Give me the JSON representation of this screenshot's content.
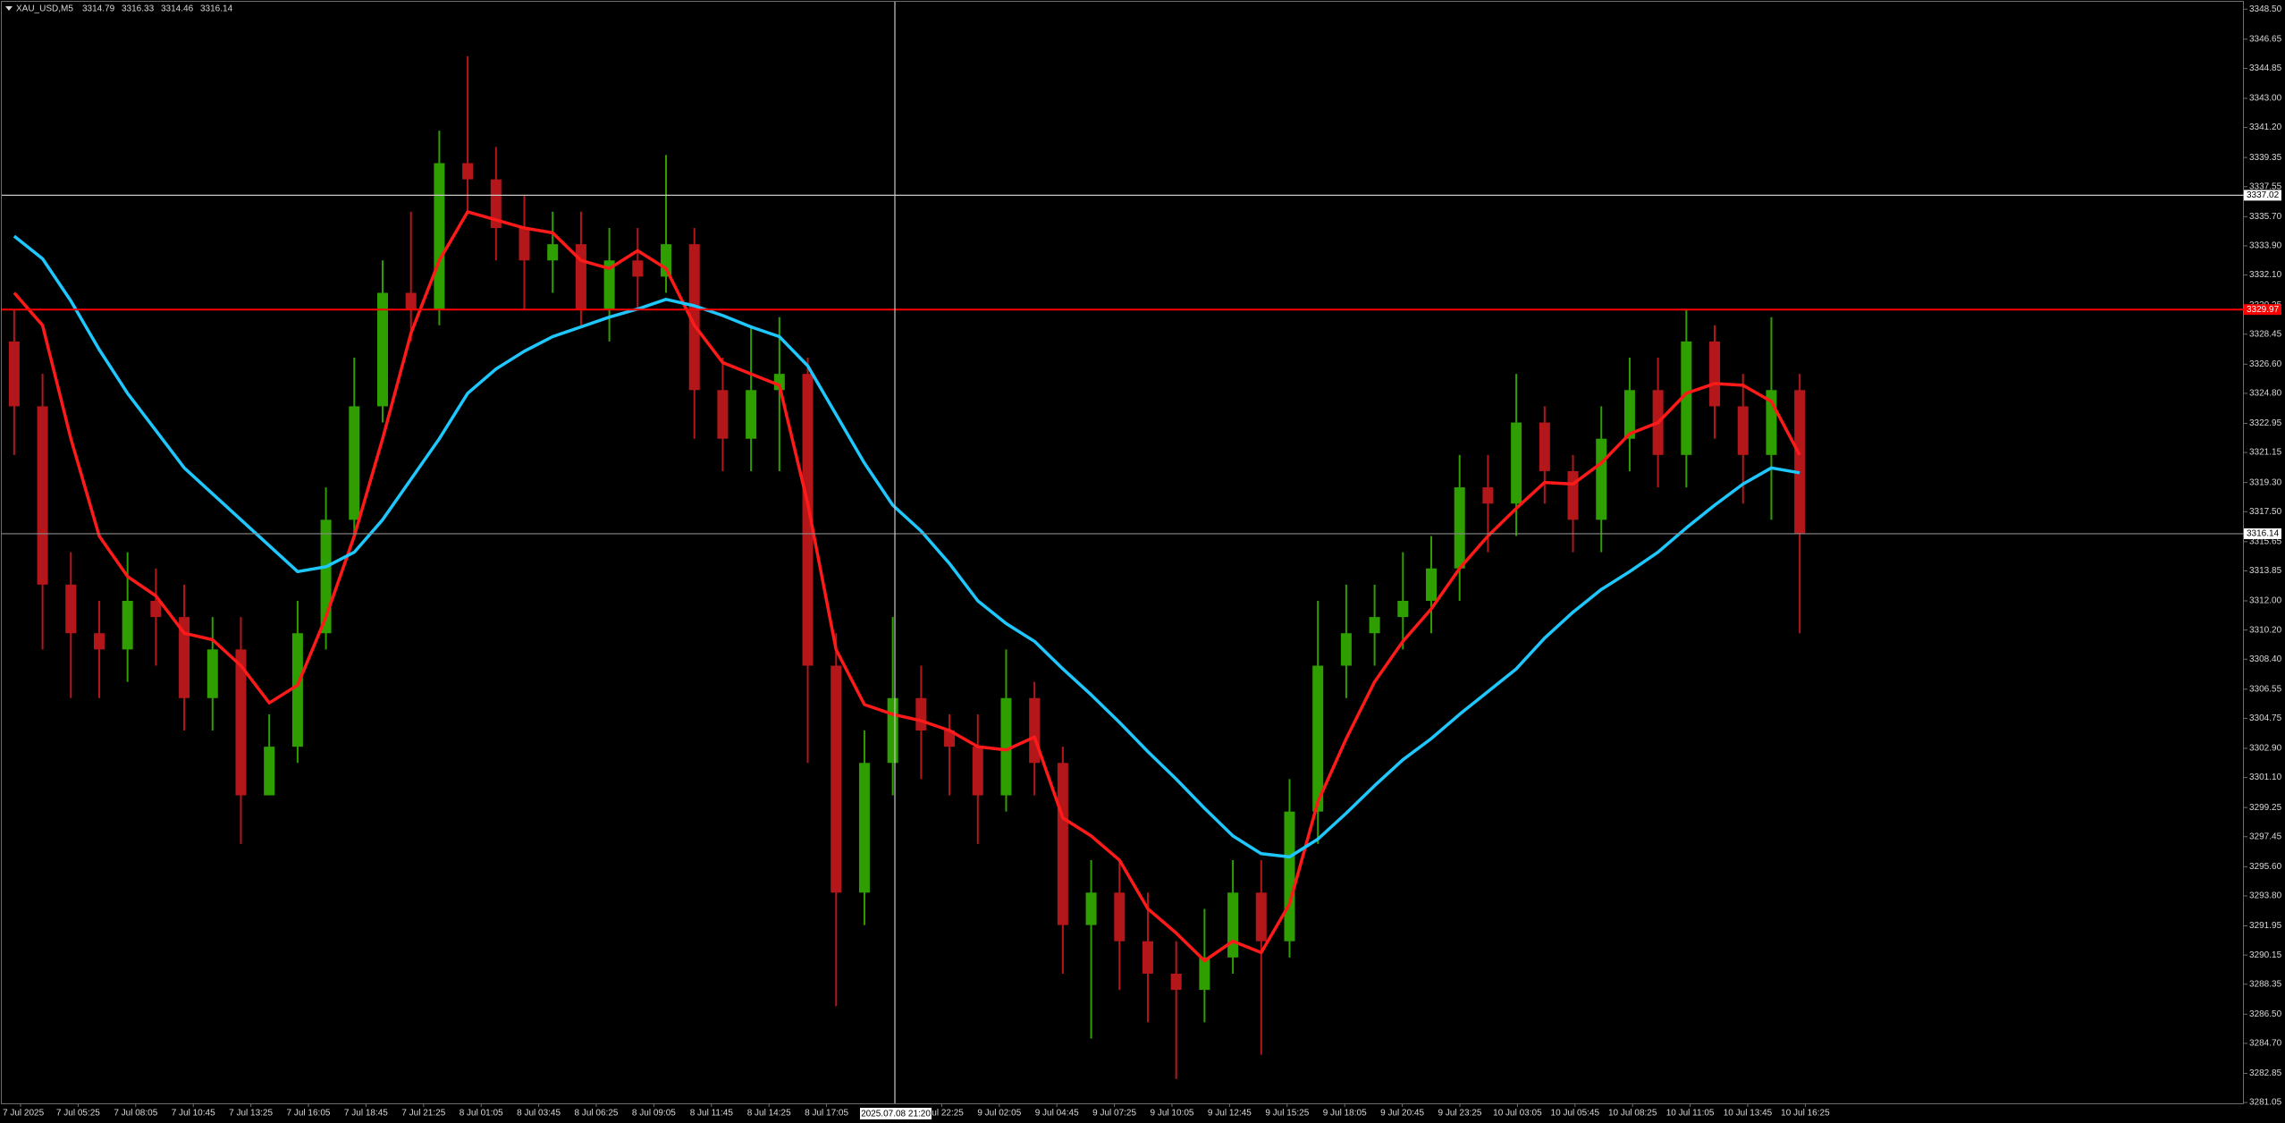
{
  "chart_data": {
    "type": "candlestick",
    "symbol": "XAU_USD,M5",
    "ohlc": [
      3314.79,
      3316.33,
      3314.46,
      3316.14
    ],
    "bull_color": "#2f9e00",
    "bear_color": "#b3171a",
    "open": [
      3328,
      3324,
      3313,
      3310,
      3309,
      3312,
      3311,
      3306,
      3309,
      3300,
      3303,
      3310,
      3317,
      3324,
      3331,
      3330,
      3339,
      3338,
      3335,
      3333,
      3334,
      3330,
      3333,
      3332,
      3334,
      3325,
      3322,
      3325,
      3326,
      3308,
      3294,
      3302,
      3306,
      3304,
      3303,
      3300,
      3306,
      3302,
      3292,
      3294,
      3291,
      3289,
      3288,
      3290,
      3294,
      3291,
      3299,
      3308,
      3310,
      3311,
      3312,
      3314,
      3319,
      3318,
      3323,
      3320,
      3317,
      3322,
      3325,
      3321,
      3328,
      3324,
      3321,
      3325
    ],
    "high": [
      3330,
      3326,
      3315,
      3312,
      3315,
      3314,
      3313,
      3311,
      3311,
      3305,
      3312,
      3319,
      3327,
      3333,
      3336,
      3341,
      3345.6,
      3340,
      3337,
      3336,
      3336,
      3335,
      3335,
      3339.5,
      3335,
      3327,
      3329,
      3329.5,
      3327,
      3310,
      3304,
      3311,
      3308,
      3305,
      3305,
      3309,
      3307,
      3303,
      3296,
      3296,
      3294,
      3291,
      3293,
      3296,
      3296,
      3301,
      3312,
      3313,
      3313,
      3315,
      3316,
      3321,
      3321,
      3326,
      3324,
      3321,
      3324,
      3327,
      3327,
      3330,
      3329,
      3326,
      3329.5,
      3326
    ],
    "low": [
      3321,
      3309,
      3306,
      3306,
      3307,
      3308,
      3304,
      3304,
      3297,
      3300,
      3302,
      3309,
      3316,
      3323,
      3328,
      3329,
      3336,
      3333,
      3330,
      3331,
      3329,
      3328,
      3330,
      3331,
      3322,
      3320,
      3320,
      3320,
      3302,
      3287,
      3292,
      3300,
      3301,
      3300,
      3297,
      3299,
      3300,
      3289,
      3285,
      3288,
      3286,
      3282.5,
      3286,
      3289,
      3284,
      3290,
      3297,
      3306,
      3308,
      3309,
      3310,
      3312,
      3315,
      3316,
      3318,
      3315,
      3315,
      3320,
      3319,
      3319,
      3322,
      3318,
      3317,
      3310
    ],
    "close": [
      3324,
      3313,
      3310,
      3309,
      3312,
      3311,
      3306,
      3309,
      3300,
      3303,
      3310,
      3317,
      3324,
      3331,
      3330,
      3339,
      3338,
      3335,
      3333,
      3334,
      3330,
      3333,
      3332,
      3334,
      3325,
      3322,
      3325,
      3326,
      3308,
      3294,
      3302,
      3306,
      3304,
      3303,
      3300,
      3306,
      3302,
      3292,
      3294,
      3291,
      3289,
      3288,
      3290,
      3294,
      3291,
      3299,
      3308,
      3310,
      3311,
      3312,
      3314,
      3319,
      3318,
      3323,
      3320,
      3317,
      3322,
      3325,
      3321,
      3328,
      3324,
      3321,
      3325,
      3316.14
    ],
    "series": [
      {
        "color": "#ff1a1a",
        "values": [
          3331,
          3329,
          3322,
          3316,
          3313.5,
          3312.3,
          3310,
          3309.6,
          3308,
          3305.7,
          3306.8,
          3311,
          3316,
          3322,
          3328.5,
          3333,
          3336,
          3335.5,
          3335,
          3334.7,
          3333,
          3332.5,
          3333.6,
          3332.5,
          3329,
          3326.7,
          3326,
          3325.3,
          3318,
          3309,
          3305.6,
          3305,
          3304.6,
          3304,
          3303,
          3302.8,
          3303.6,
          3298.6,
          3297.5,
          3296,
          3293,
          3291.5,
          3289.8,
          3291,
          3290.3,
          3293.3,
          3299.6,
          3303.5,
          3307,
          3309.5,
          3311.5,
          3314,
          3316,
          3317.7,
          3319.3,
          3319.2,
          3320.5,
          3322.3,
          3323,
          3324.8,
          3325.4,
          3325.3,
          3324.3,
          3321
        ]
      },
      {
        "color": "#1ec8ff",
        "values": [
          3334.5,
          3333.1,
          3330.5,
          3327.5,
          3324.8,
          3322.5,
          3320.2,
          3318.6,
          3317,
          3315.4,
          3313.8,
          3314.1,
          3315,
          3317,
          3319.5,
          3322,
          3324.8,
          3326.3,
          3327.4,
          3328.3,
          3328.9,
          3329.5,
          3330,
          3330.6,
          3330.2,
          3329.6,
          3328.9,
          3328.3,
          3326.5,
          3323.5,
          3320.5,
          3317.9,
          3316.3,
          3314.3,
          3312,
          3310.6,
          3309.5,
          3307.8,
          3306.2,
          3304.5,
          3302.7,
          3301,
          3299.2,
          3297.5,
          3296.4,
          3296.2,
          3297.3,
          3298.9,
          3300.6,
          3302.2,
          3303.5,
          3305,
          3306.4,
          3307.8,
          3309.7,
          3311.3,
          3312.7,
          3313.8,
          3315,
          3316.5,
          3317.9,
          3319.2,
          3320.2,
          3319.9
        ]
      }
    ],
    "ylim": [
      3281.0,
      3348.9
    ],
    "yticks": [
      {
        "value": 3348.5,
        "label": "3348.50"
      },
      3346.65,
      3344.85,
      {
        "value": 3343,
        "label": "3343.00"
      },
      {
        "value": 3341.2,
        "label": "3341.20"
      },
      3339.35,
      3337.55,
      {
        "value": 3335.7,
        "label": "3335.70"
      },
      {
        "value": 3333.9,
        "label": "3333.90"
      },
      {
        "value": 3332.1,
        "label": "3332.10"
      },
      3330.25,
      3328.45,
      {
        "value": 3326.6,
        "label": "3326.60"
      },
      {
        "value": 3324.8,
        "label": "3324.80"
      },
      3322.95,
      3321.15,
      {
        "value": 3319.3,
        "label": "3319.30"
      },
      {
        "value": 3317.5,
        "label": "3317.50"
      },
      3315.65,
      3313.85,
      {
        "value": 3312,
        "label": "3312.00"
      },
      {
        "value": 3310.2,
        "label": "3310.20"
      },
      {
        "value": 3308.4,
        "label": "3308.40"
      },
      3306.55,
      3304.75,
      {
        "value": 3302.9,
        "label": "3302.90"
      },
      {
        "value": 3301.1,
        "label": "3301.10"
      },
      3299.25,
      3297.45,
      {
        "value": 3295.6,
        "label": "3295.60"
      },
      {
        "value": 3293.8,
        "label": "3293.80"
      },
      3291.95,
      3290.15,
      3288.35,
      {
        "value": 3286.5,
        "label": "3286.50"
      },
      {
        "value": 3284.7,
        "label": "3284.70"
      },
      3282.85,
      3281.05
    ],
    "time_labels": [
      "7 Jul 2025",
      "7 Jul 05:25",
      "7 Jul 08:05",
      "7 Jul 10:45",
      "7 Jul 13:25",
      "7 Jul 16:05",
      "7 Jul 18:45",
      "7 Jul 21:25",
      "8 Jul 01:05",
      "8 Jul 03:45",
      "8 Jul 06:25",
      "8 Jul 09:05",
      "8 Jul 11:45",
      "8 Jul 14:25",
      "8 Jul 17:05",
      null,
      "8 Jul 22:25",
      "9 Jul 02:05",
      "9 Jul 04:45",
      "9 Jul 07:25",
      "9 Jul 10:05",
      "9 Jul 12:45",
      "9 Jul 15:25",
      "9 Jul 18:05",
      "9 Jul 20:45",
      "9 Jul 23:25",
      "10 Jul 03:05",
      "10 Jul 05:45",
      "10 Jul 08:25",
      "10 Jul 11:05",
      "10 Jul 13:45",
      "10 Jul 16:25"
    ],
    "levels": [
      {
        "value": 3329.97,
        "color": "#ff0000",
        "text_color": "#ffffff",
        "line": "#ff0000"
      },
      {
        "value": 3337.02,
        "color": "#ffffff",
        "text_color": "#000000",
        "line": "#c8c8c8"
      },
      {
        "value": 3316.14,
        "color": "#ffffff",
        "text_color": "#000000",
        "line": "#8a8a8a"
      }
    ],
    "crosshair_time": "2025.07.08 21:20"
  }
}
